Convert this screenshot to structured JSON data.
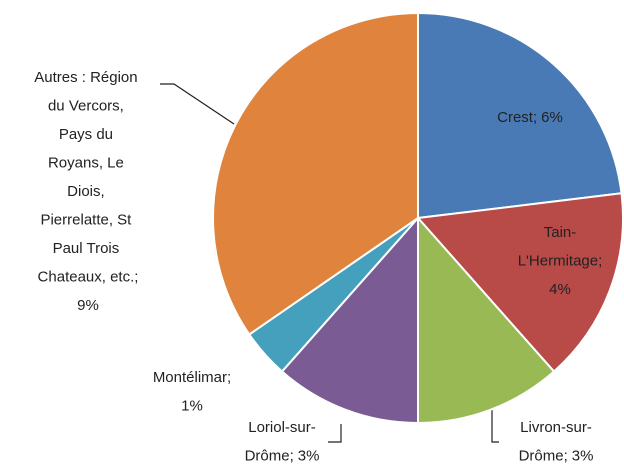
{
  "chart_data": {
    "type": "pie",
    "categories": [
      "Crest",
      "Tain-L'Hermitage",
      "Livron-sur-Drôme",
      "Loriol-sur-Drôme",
      "Montélimar",
      "Autres : Région du Vercors, Pays du Royans, Le Diois, Pierrelatte, St Paul Trois Chateaux, etc."
    ],
    "values": [
      6,
      4,
      3,
      3,
      1,
      9
    ],
    "value_labels": [
      "6%",
      "4%",
      "3%",
      "3%",
      "1%",
      "9%"
    ],
    "separator": ";",
    "colors": [
      "#4a7ab5",
      "#b84a48",
      "#98b954",
      "#7a5b94",
      "#45a0bd",
      "#e0843d"
    ]
  }
}
